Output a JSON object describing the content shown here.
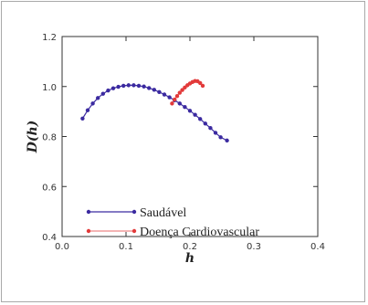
{
  "chart_data": {
    "type": "line",
    "xlabel": "h",
    "ylabel": "D(h)",
    "xlim": [
      0.0,
      0.4
    ],
    "ylim": [
      0.4,
      1.2
    ],
    "xticks": [
      "0.0",
      "0.1",
      "0.2",
      "0.3",
      "0.4"
    ],
    "yticks": [
      "0.4",
      "0.6",
      "0.8",
      "1.0",
      "1.2"
    ],
    "grid": false,
    "legend_position": "bottom-left",
    "series": [
      {
        "name": "Saudável",
        "color": "#3b2aa0",
        "x": [
          0.032,
          0.04,
          0.048,
          0.056,
          0.064,
          0.072,
          0.08,
          0.088,
          0.096,
          0.104,
          0.112,
          0.12,
          0.128,
          0.136,
          0.144,
          0.152,
          0.16,
          0.168,
          0.176,
          0.184,
          0.192,
          0.2,
          0.208,
          0.216,
          0.224,
          0.232,
          0.24,
          0.248,
          0.258
        ],
        "y": [
          0.872,
          0.905,
          0.932,
          0.954,
          0.971,
          0.984,
          0.993,
          0.999,
          1.003,
          1.005,
          1.005,
          1.003,
          1.0,
          0.994,
          0.987,
          0.978,
          0.968,
          0.957,
          0.945,
          0.932,
          0.918,
          0.903,
          0.887,
          0.87,
          0.852,
          0.834,
          0.815,
          0.797,
          0.784
        ]
      },
      {
        "name": "Doença Cardiovascular",
        "color": "#e23a3a",
        "x": [
          0.172,
          0.176,
          0.18,
          0.184,
          0.188,
          0.192,
          0.196,
          0.2,
          0.204,
          0.208,
          0.212,
          0.216,
          0.22
        ],
        "y": [
          0.932,
          0.948,
          0.962,
          0.975,
          0.986,
          0.996,
          1.005,
          1.012,
          1.018,
          1.022,
          1.021,
          1.014,
          1.003
        ]
      }
    ]
  }
}
